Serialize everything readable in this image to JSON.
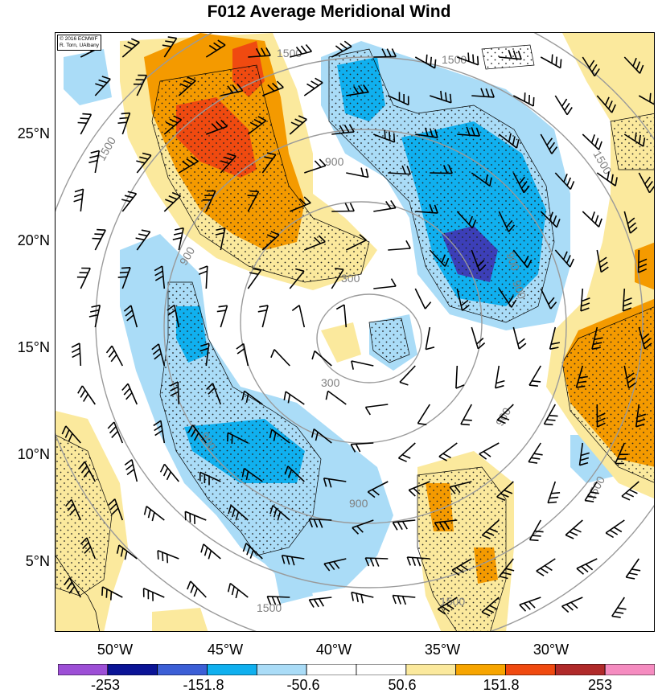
{
  "title": "F012 Average Meridional Wind",
  "credit": {
    "line1": "© 2016 ECMWF",
    "line2": "R. Torn, UAlbany"
  },
  "lat_labels": [
    "25°N",
    "20°N",
    "15°N",
    "10°N",
    "5°N"
  ],
  "lon_labels": [
    "50°W",
    "45°W",
    "40°W",
    "35°W",
    "30°W"
  ],
  "contour_labels": [
    "1500",
    "1500",
    "1500",
    "900",
    "900",
    "900",
    "900",
    "300",
    "300",
    "900",
    "1500",
    "1500",
    "1500",
    "1500",
    "900",
    "900"
  ],
  "colorbar": {
    "colors": [
      "#9d4fd6",
      "#0b1496",
      "#3c5fd6",
      "#10b0ef",
      "#aadcf7",
      "#ffffff",
      "#ffffff",
      "#fbe99d",
      "#f7a500",
      "#f04a10",
      "#b02a2a",
      "#f58cc0"
    ],
    "labels": [
      "-253",
      "-151.8",
      "-50.6",
      "50.6",
      "151.8",
      "253"
    ]
  },
  "palette": {
    "strong_neg": "#3c3fb8",
    "mid_neg": "#10b0ef",
    "weak_neg": "#aadcf7",
    "weak_pos": "#fbe99d",
    "mid_pos": "#f49a00",
    "strong_pos": "#f04a10",
    "contour": "#9a9a9a"
  }
}
